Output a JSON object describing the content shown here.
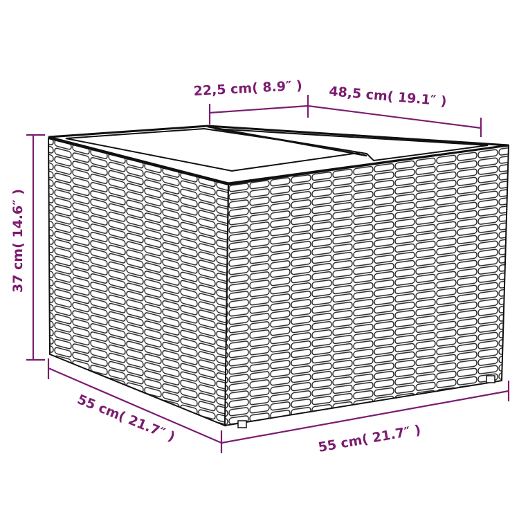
{
  "colors": {
    "dimension": "#7b1c70",
    "outline": "#111111",
    "weave": "#222222"
  },
  "dimensions": {
    "top_lid": "22,5 cm( 8.9″ )",
    "top_depth": "48,5 cm( 19.1″ )",
    "height": "37 cm( 14.6″ )",
    "bottom_left": "55 cm( 21.7″ )",
    "bottom_right": "55 cm( 21.7″ )"
  }
}
